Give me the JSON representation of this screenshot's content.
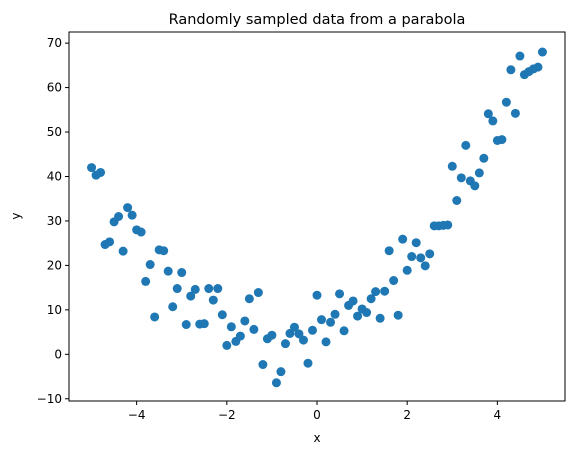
{
  "chart_data": {
    "type": "scatter",
    "title": "Randomly sampled data from a parabola",
    "xlabel": "x",
    "ylabel": "y",
    "xlim": [
      -5.5,
      5.5
    ],
    "ylim": [
      -10.5,
      72.5
    ],
    "xticks": [
      -4,
      -2,
      0,
      2,
      4
    ],
    "xtick_labels": [
      "−4",
      "−2",
      "0",
      "2",
      "4"
    ],
    "yticks": [
      -10,
      0,
      10,
      20,
      30,
      40,
      50,
      60,
      70
    ],
    "ytick_labels": [
      "−10",
      "0",
      "10",
      "20",
      "30",
      "40",
      "50",
      "60",
      "70"
    ],
    "grid": false,
    "marker_color": "#1f77b4",
    "series": [
      {
        "x": [
          -5.0,
          -4.9,
          -4.8,
          -4.7,
          -4.6,
          -4.5,
          -4.4,
          -4.3,
          -4.2,
          -4.1,
          -4.0,
          -3.9,
          -3.8,
          -3.7,
          -3.6,
          -3.5,
          -3.4,
          -3.3,
          -3.2,
          -3.1,
          -3.0,
          -2.9,
          -2.8,
          -2.7,
          -2.6,
          -2.5,
          -2.4,
          -2.3,
          -2.2,
          -2.1,
          -2.0,
          -1.9,
          -1.8,
          -1.7,
          -1.6,
          -1.5,
          -1.4,
          -1.3,
          -1.2,
          -1.1,
          -1.0,
          -0.9,
          -0.8,
          -0.7,
          -0.6,
          -0.5,
          -0.4,
          -0.3,
          -0.2,
          -0.1,
          0.0,
          0.1,
          0.2,
          0.3,
          0.4,
          0.5,
          0.6,
          0.7,
          0.8,
          0.9,
          1.0,
          1.1,
          1.2,
          1.3,
          1.4,
          1.5,
          1.6,
          1.7,
          1.8,
          1.9,
          2.0,
          2.1,
          2.2,
          2.3,
          2.4,
          2.5,
          2.6,
          2.7,
          2.8,
          2.9,
          3.0,
          3.1,
          3.2,
          3.3,
          3.4,
          3.5,
          3.6,
          3.7,
          3.8,
          3.9,
          4.0,
          4.1,
          4.2,
          4.3,
          4.4,
          4.5,
          4.6,
          4.7,
          4.8,
          4.9,
          5.0
        ],
        "y": [
          42.0,
          40.3,
          40.9,
          24.7,
          25.3,
          29.8,
          31.0,
          23.2,
          33.0,
          31.3,
          28.0,
          27.5,
          16.4,
          20.2,
          8.4,
          23.5,
          23.3,
          18.7,
          10.7,
          14.8,
          18.4,
          6.7,
          13.1,
          14.6,
          6.8,
          6.9,
          14.8,
          12.2,
          14.8,
          8.9,
          2.0,
          6.2,
          2.9,
          4.1,
          7.5,
          12.5,
          5.6,
          13.9,
          -2.3,
          3.5,
          4.3,
          -6.4,
          -3.9,
          2.4,
          4.7,
          6.1,
          4.6,
          3.2,
          -2.0,
          5.4,
          13.3,
          7.8,
          2.8,
          7.2,
          9.0,
          13.6,
          5.3,
          11.0,
          12.0,
          8.6,
          10.2,
          9.4,
          12.5,
          14.1,
          8.1,
          14.2,
          23.3,
          16.6,
          8.8,
          25.9,
          18.9,
          22.0,
          25.1,
          21.7,
          19.9,
          22.6,
          28.9,
          28.9,
          29.0,
          29.1,
          42.3,
          34.6,
          39.7,
          47.0,
          39.0,
          37.9,
          40.8,
          44.1,
          54.1,
          52.5,
          48.1,
          48.3,
          56.7,
          64.0,
          54.2,
          67.1,
          62.9,
          63.6,
          64.2,
          64.6,
          68.0
        ]
      }
    ]
  }
}
